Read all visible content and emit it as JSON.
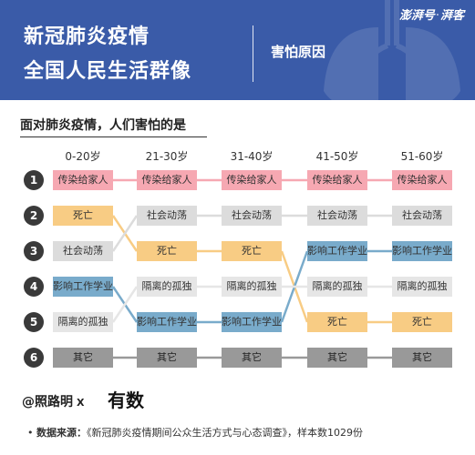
{
  "header": {
    "title_line1": "新冠肺炎疫情",
    "title_line2": "全国人民生活群像",
    "subtitle": "害怕原因",
    "brand_left": "澎湃号",
    "brand_sep": "·",
    "brand_right": "湃客"
  },
  "question": "面对肺炎疫情，人们害怕的是",
  "chart_data": {
    "type": "table",
    "title": "面对肺炎疫情，人们害怕的是",
    "columns": [
      "0-20岁",
      "21-30岁",
      "31-40岁",
      "41-50岁",
      "51-60岁"
    ],
    "ranks": [
      "1",
      "2",
      "3",
      "4",
      "5",
      "6"
    ],
    "categories": [
      {
        "key": "transmit",
        "label": "传染给家人",
        "color": "#f6a8b2",
        "ranks": [
          1,
          1,
          1,
          1,
          1
        ]
      },
      {
        "key": "death",
        "label": "死亡",
        "color": "#f8cc84",
        "ranks": [
          2,
          3,
          3,
          5,
          5
        ]
      },
      {
        "key": "unrest",
        "label": "社会动荡",
        "color": "#dcdcdc",
        "ranks": [
          3,
          2,
          2,
          2,
          2
        ]
      },
      {
        "key": "work",
        "label": "影响工作学业",
        "color": "#79abcb",
        "ranks": [
          4,
          5,
          5,
          3,
          3
        ]
      },
      {
        "key": "lonely",
        "label": "隔离的孤独",
        "color": "#e6e6e6",
        "ranks": [
          5,
          4,
          4,
          4,
          4
        ]
      },
      {
        "key": "other",
        "label": "其它",
        "color": "#999999",
        "ranks": [
          6,
          6,
          6,
          6,
          6
        ]
      }
    ]
  },
  "credit": {
    "handle": "@照路明",
    "x": "X",
    "logo": "有数"
  },
  "footer": {
    "label": "数据来源：",
    "text": "《新冠肺炎疫情期间公众生活方式与心态调查》，样本数1029份"
  }
}
